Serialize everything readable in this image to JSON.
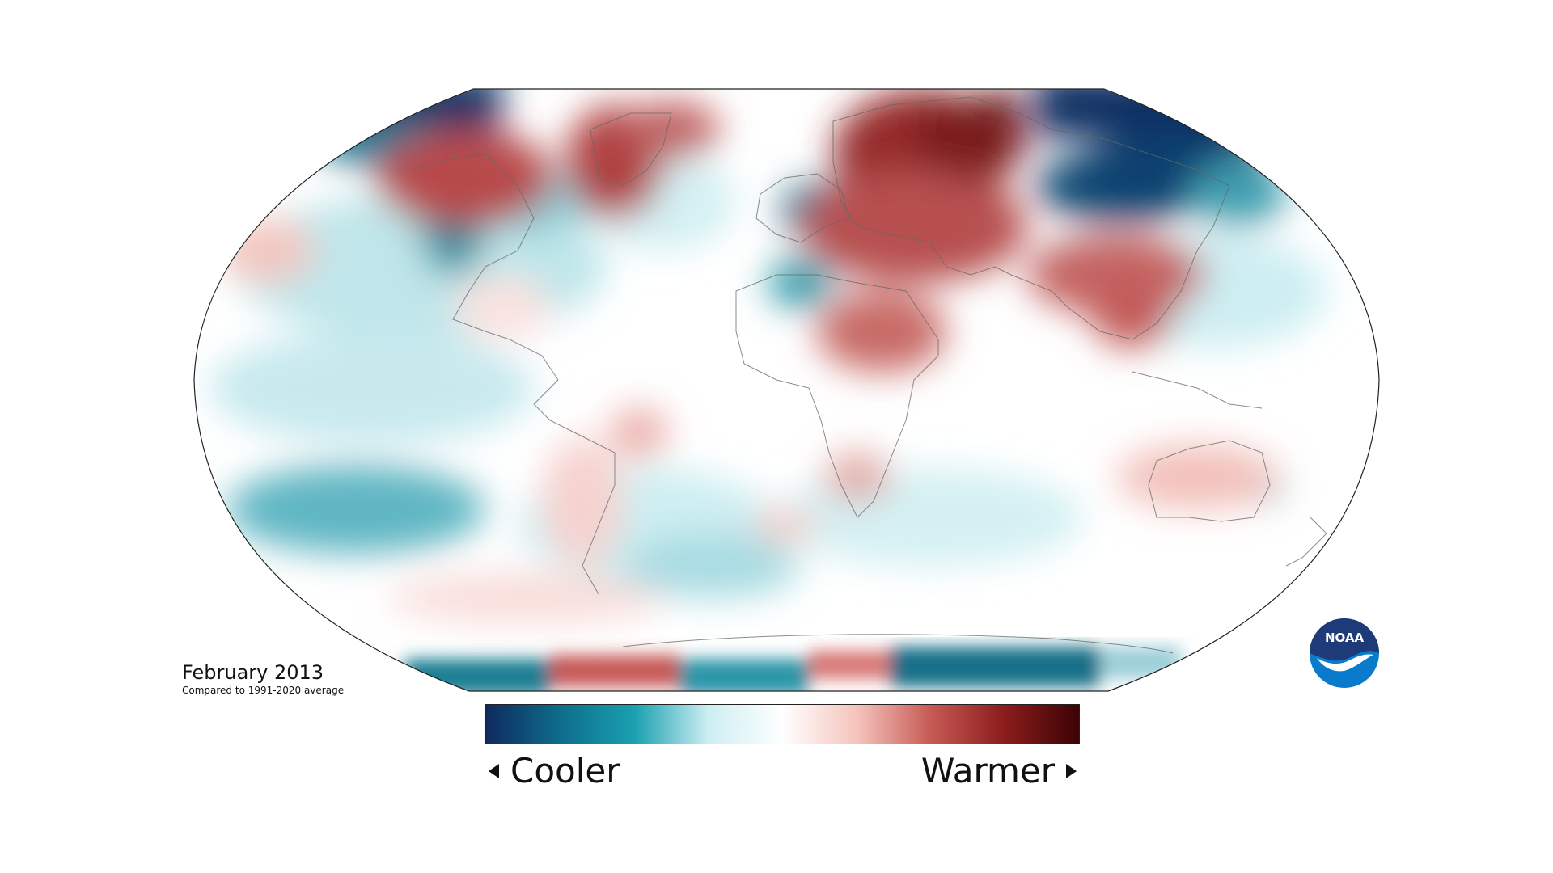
{
  "map": {
    "title": "February 2013",
    "subtitle": "Compared to 1991-2020 average",
    "projection": "Robinson",
    "colors": {
      "cool_strong": "#0f2a5e",
      "cool_mid": "#0e7a8f",
      "cool_light": "#a9dde3",
      "neutral": "#ffffff",
      "warm_light": "#f2b8b0",
      "warm_mid": "#b8403e",
      "warm_strong": "#4a0508",
      "coastline": "#555555"
    }
  },
  "legend": {
    "cooler_label": "Cooler",
    "warmer_label": "Warmer",
    "stops": [
      "#0f2a5e",
      "#0e6d8c",
      "#1aa0b0",
      "#cdeef2",
      "#ffffff",
      "#f5c4bc",
      "#c75a55",
      "#8a1c1c",
      "#3d0305"
    ]
  },
  "logo": {
    "text": "NOAA",
    "icon": "noaa-logo-icon",
    "colors": {
      "top": "#1f3a78",
      "bottom": "#0a7acc"
    }
  }
}
